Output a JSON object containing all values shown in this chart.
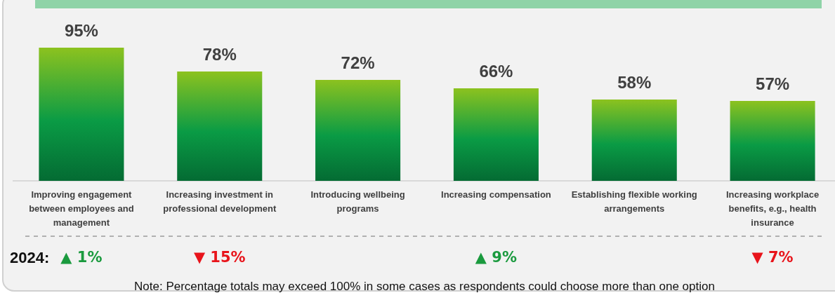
{
  "chart_data": {
    "type": "bar",
    "categories": [
      "Improving engagement between employees and management",
      "Increasing investment in professional development",
      "Introducing wellbeing programs",
      "Increasing compensation",
      "Establishing flexible working arrangements",
      "Increasing workplace benefits, e.g., health insurance"
    ],
    "values": [
      95,
      78,
      72,
      66,
      58,
      57
    ],
    "value_labels": [
      "95%",
      "78%",
      "72%",
      "66%",
      "58%",
      "57%"
    ],
    "color": "#0a9b45",
    "annotations": [
      "2024:",
      "▲ 1%",
      "▼ 15%",
      "▲ 9%",
      "▼ 7%",
      "Note: Percentage totals may exceed 100% in some cases as respondents could choose more than one option"
    ]
  }
}
